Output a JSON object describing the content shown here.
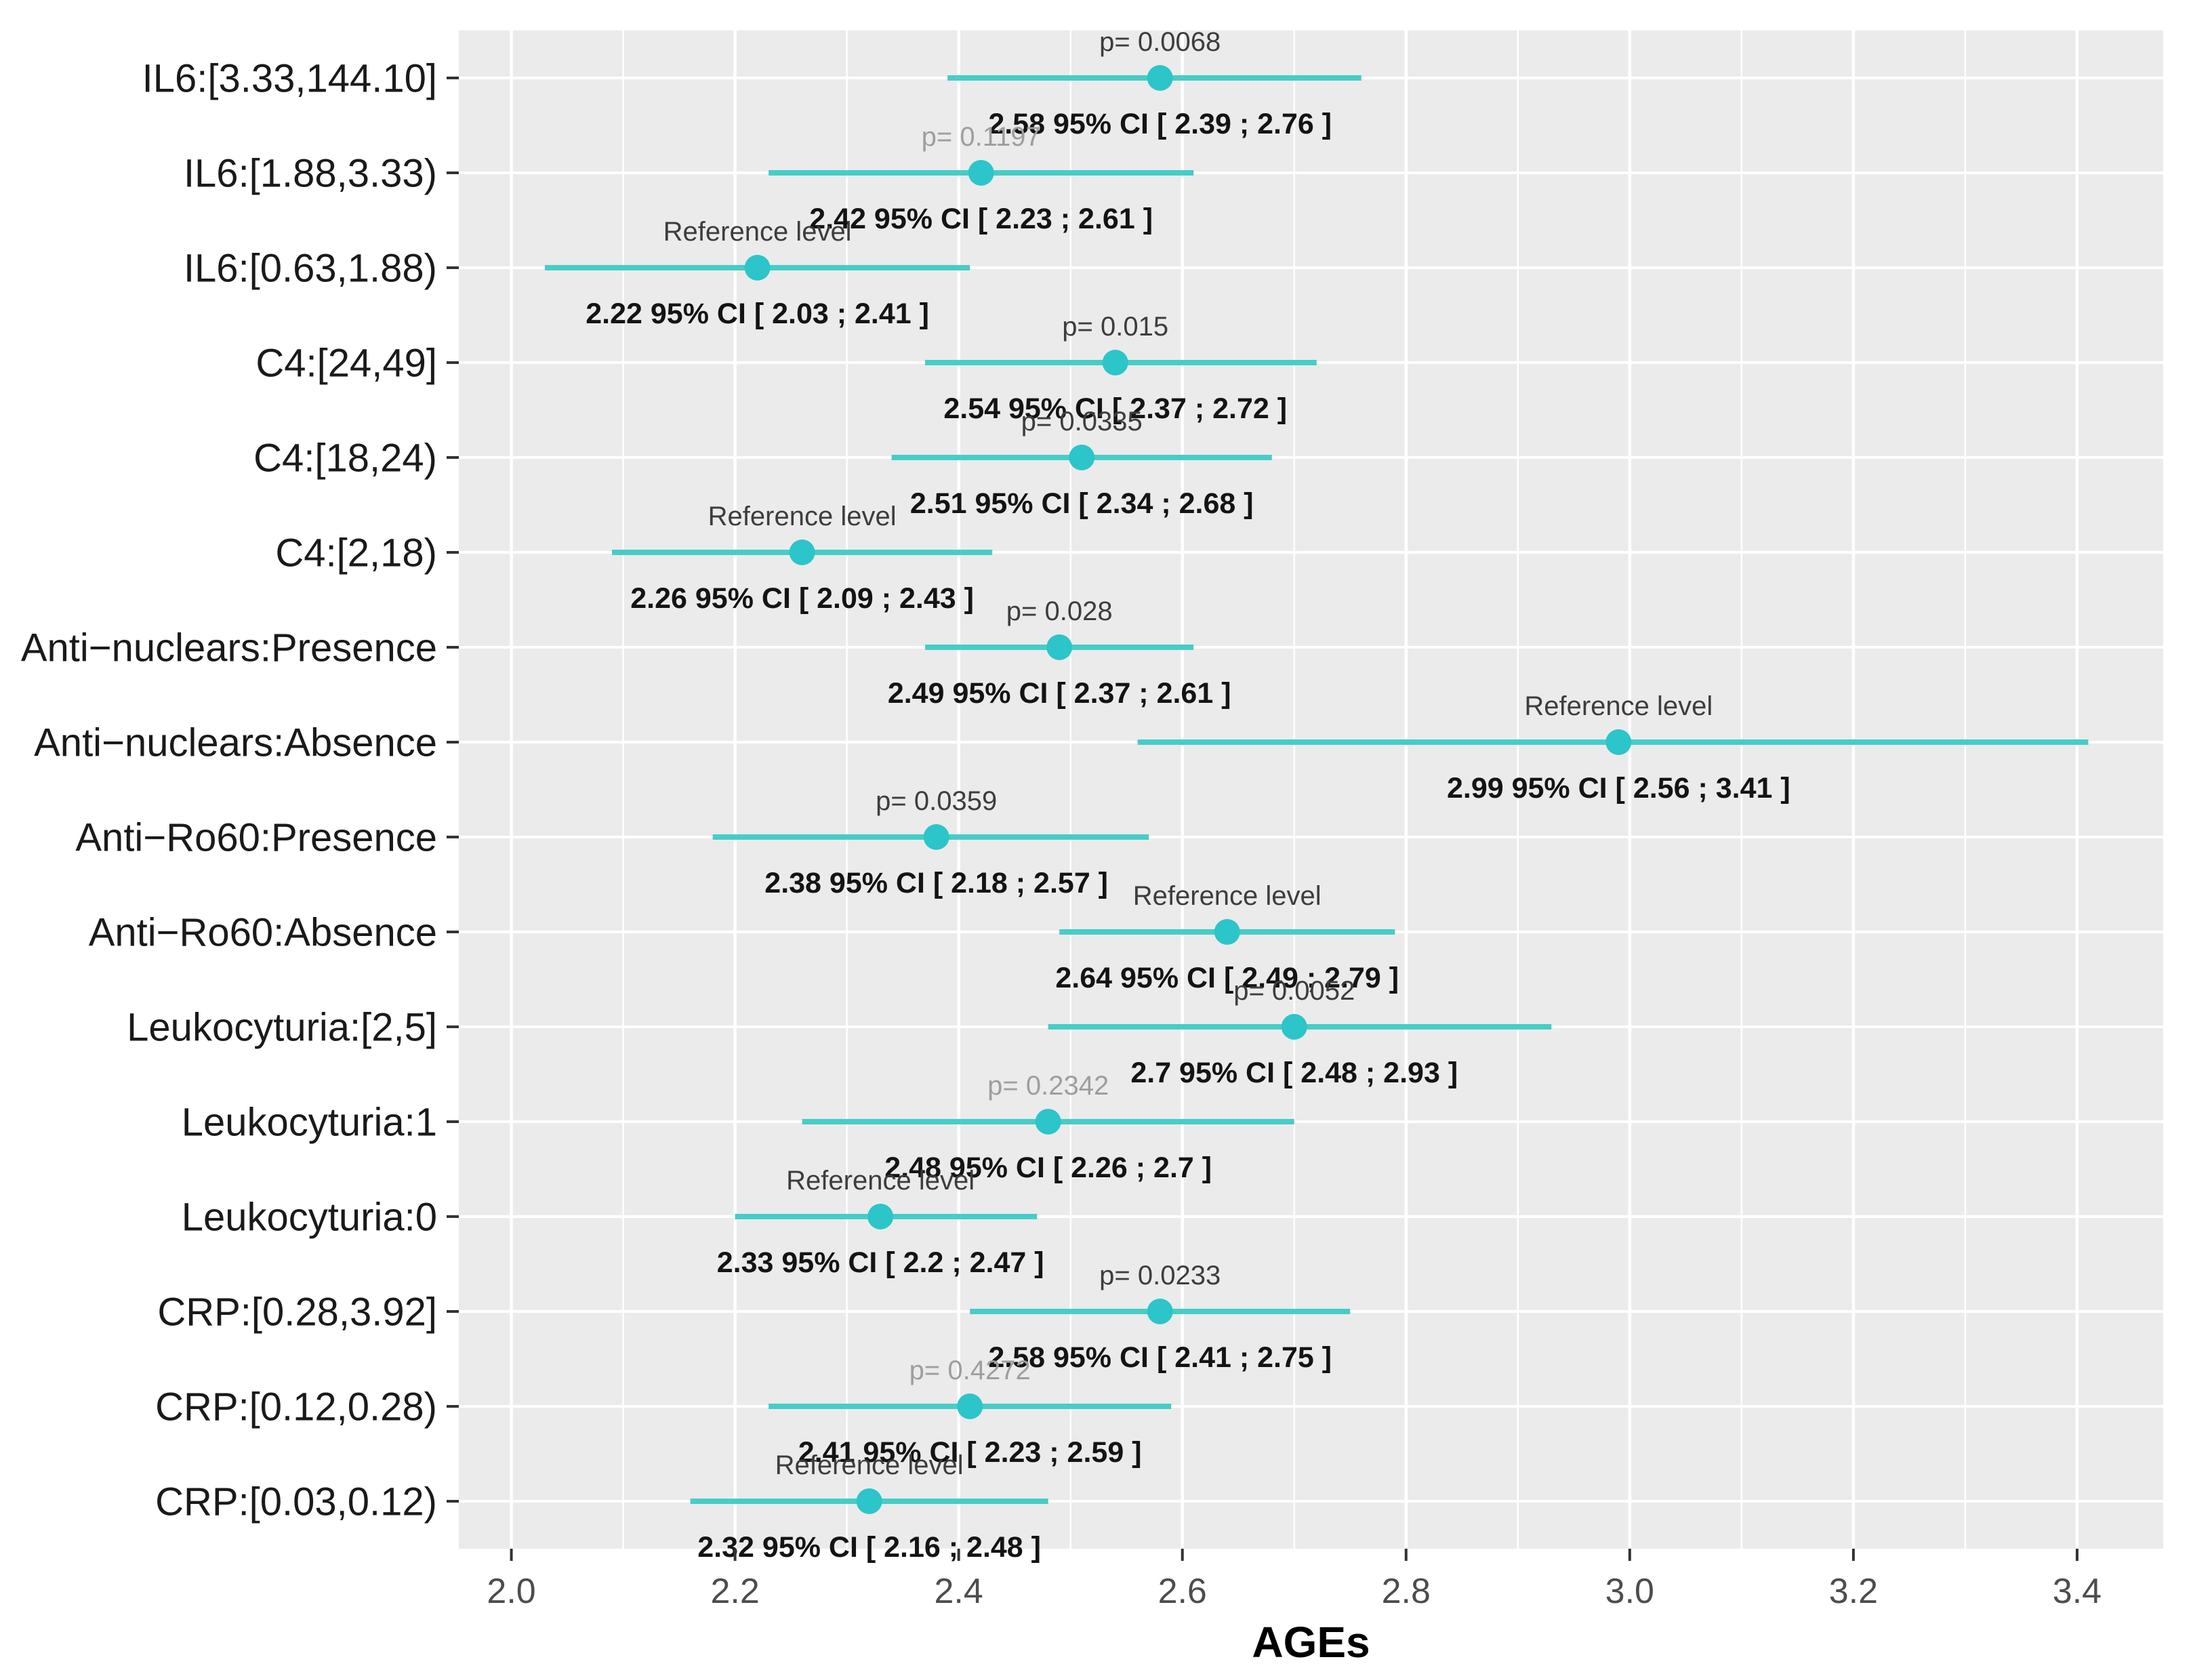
{
  "figure": {
    "kind": "forest plot",
    "background": "#ffffff"
  },
  "chart_data": {
    "type": "scatter",
    "subtype": "forest-plot-with-ci",
    "title": "",
    "xlabel": "AGEs",
    "ylabel": "",
    "xlim": [
      1.953,
      3.477
    ],
    "x_major_ticks": [
      2.0,
      2.2,
      2.4,
      2.6,
      2.8,
      3.0,
      3.2,
      3.4
    ],
    "x_major_tick_labels": [
      "2.0",
      "2.2",
      "2.4",
      "2.6",
      "2.8",
      "3.0",
      "3.2",
      "3.4"
    ],
    "x_minor_ticks": [
      2.1,
      2.3,
      2.5,
      2.7,
      2.9,
      3.1,
      3.3
    ],
    "grid": true,
    "legend": false,
    "categories": [
      "IL6:[3.33,144.10]",
      "IL6:[1.88,3.33)",
      "IL6:[0.63,1.88)",
      "C4:[24,49]",
      "C4:[18,24)",
      "C4:[2,18)",
      "Anti−nuclears:Presence",
      "Anti−nuclears:Absence",
      "Anti−Ro60:Presence",
      "Anti−Ro60:Absence",
      "Leukocyturia:[2,5]",
      "Leukocyturia:1",
      "Leukocyturia:0",
      "CRP:[0.28,3.92]",
      "CRP:[0.12,0.28)",
      "CRP:[0.03,0.12)"
    ],
    "rows": [
      {
        "label": "IL6:[3.33,144.10]",
        "estimate": 2.58,
        "ci_low": 2.39,
        "ci_high": 2.76,
        "top_label": "p= 0.0068",
        "top_label_style": "significant",
        "ci_label": "2.58 95% CI [ 2.39 ; 2.76 ]"
      },
      {
        "label": "IL6:[1.88,3.33)",
        "estimate": 2.42,
        "ci_low": 2.23,
        "ci_high": 2.61,
        "top_label": "p= 0.1197",
        "top_label_style": "non_significant",
        "ci_label": "2.42 95% CI [ 2.23 ; 2.61 ]"
      },
      {
        "label": "IL6:[0.63,1.88)",
        "estimate": 2.22,
        "ci_low": 2.03,
        "ci_high": 2.41,
        "top_label": "Reference level",
        "top_label_style": "reference",
        "ci_label": "2.22 95% CI [ 2.03 ; 2.41 ]"
      },
      {
        "label": "C4:[24,49]",
        "estimate": 2.54,
        "ci_low": 2.37,
        "ci_high": 2.72,
        "top_label": "p= 0.015",
        "top_label_style": "significant",
        "ci_label": "2.54 95% CI [ 2.37 ; 2.72 ]"
      },
      {
        "label": "C4:[18,24)",
        "estimate": 2.51,
        "ci_low": 2.34,
        "ci_high": 2.68,
        "top_label": "p= 0.0335",
        "top_label_style": "significant",
        "ci_label": "2.51 95% CI [ 2.34 ; 2.68 ]"
      },
      {
        "label": "C4:[2,18)",
        "estimate": 2.26,
        "ci_low": 2.09,
        "ci_high": 2.43,
        "top_label": "Reference level",
        "top_label_style": "reference",
        "ci_label": "2.26 95% CI [ 2.09 ; 2.43 ]"
      },
      {
        "label": "Anti−nuclears:Presence",
        "estimate": 2.49,
        "ci_low": 2.37,
        "ci_high": 2.61,
        "top_label": "p= 0.028",
        "top_label_style": "significant",
        "ci_label": "2.49 95% CI [ 2.37 ; 2.61 ]"
      },
      {
        "label": "Anti−nuclears:Absence",
        "estimate": 2.99,
        "ci_low": 2.56,
        "ci_high": 3.41,
        "top_label": "Reference level",
        "top_label_style": "reference",
        "ci_label": "2.99 95% CI [ 2.56 ; 3.41 ]"
      },
      {
        "label": "Anti−Ro60:Presence",
        "estimate": 2.38,
        "ci_low": 2.18,
        "ci_high": 2.57,
        "top_label": "p= 0.0359",
        "top_label_style": "significant",
        "ci_label": "2.38 95% CI [ 2.18 ; 2.57 ]"
      },
      {
        "label": "Anti−Ro60:Absence",
        "estimate": 2.64,
        "ci_low": 2.49,
        "ci_high": 2.79,
        "top_label": "Reference level",
        "top_label_style": "reference",
        "ci_label": "2.64 95% CI [ 2.49 ; 2.79 ]"
      },
      {
        "label": "Leukocyturia:[2,5]",
        "estimate": 2.7,
        "ci_low": 2.48,
        "ci_high": 2.93,
        "top_label": "p= 0.0052",
        "top_label_style": "significant",
        "ci_label": "2.7 95% CI [ 2.48 ; 2.93 ]"
      },
      {
        "label": "Leukocyturia:1",
        "estimate": 2.48,
        "ci_low": 2.26,
        "ci_high": 2.7,
        "top_label": "p= 0.2342",
        "top_label_style": "non_significant",
        "ci_label": "2.48 95% CI [ 2.26 ; 2.7 ]"
      },
      {
        "label": "Leukocyturia:0",
        "estimate": 2.33,
        "ci_low": 2.2,
        "ci_high": 2.47,
        "top_label": "Reference level",
        "top_label_style": "reference",
        "ci_label": "2.33 95% CI [ 2.2 ; 2.47 ]"
      },
      {
        "label": "CRP:[0.28,3.92]",
        "estimate": 2.58,
        "ci_low": 2.41,
        "ci_high": 2.75,
        "top_label": "p= 0.0233",
        "top_label_style": "significant",
        "ci_label": "2.58 95% CI [ 2.41 ; 2.75 ]"
      },
      {
        "label": "CRP:[0.12,0.28)",
        "estimate": 2.41,
        "ci_low": 2.23,
        "ci_high": 2.59,
        "top_label": "p= 0.4272",
        "top_label_style": "non_significant",
        "ci_label": "2.41 95% CI [ 2.23 ; 2.59 ]"
      },
      {
        "label": "CRP:[0.03,0.12)",
        "estimate": 2.32,
        "ci_low": 2.16,
        "ci_high": 2.48,
        "top_label": "Reference level",
        "top_label_style": "reference",
        "ci_label": "2.32 95% CI [ 2.16 ; 2.48 ]"
      }
    ],
    "colors": {
      "panel_background": "#ebebeb",
      "gridline": "#ffffff",
      "ci_line": "#46cdc7",
      "point": "#2cc5c9",
      "significant_text": "#3d3d3d",
      "non_significant_text": "#9e9e9e",
      "reference_text": "#3d3d3d",
      "ci_text": "#141414",
      "axis_tick": "#333333",
      "x_tick_label": "#4d4d4d",
      "y_label": "#1a1a1a",
      "x_title": "#000000"
    }
  }
}
